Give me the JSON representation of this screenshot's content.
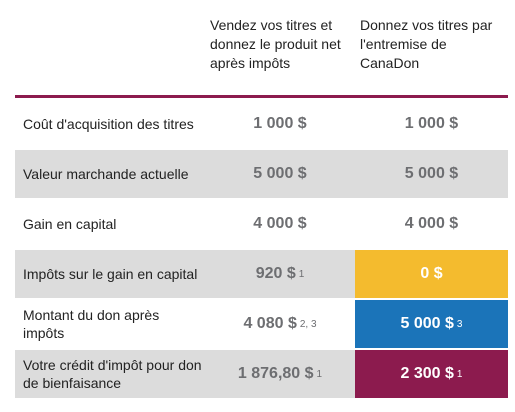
{
  "header": {
    "columns": [
      "Vendez vos titres et donnez le produit net après impôts",
      "Donnez vos titres par l'entremise de CanaDon"
    ]
  },
  "table": {
    "rows": [
      {
        "label": "Coût d'acquisition des titres",
        "cells": [
          {
            "value": "1 000 $"
          },
          {
            "value": "1 000 $"
          }
        ]
      },
      {
        "label": "Valeur marchande actuelle",
        "cells": [
          {
            "value": "5 000 $"
          },
          {
            "value": "5 000 $"
          }
        ]
      },
      {
        "label": "Gain en capital",
        "cells": [
          {
            "value": "4 000 $"
          },
          {
            "value": "4 000 $"
          }
        ]
      },
      {
        "label": "Impôts sur le gain en capital",
        "cells": [
          {
            "value": "920 $",
            "note": "1"
          },
          {
            "value": "0 $",
            "highlight": "#f4bb2e"
          }
        ]
      },
      {
        "label": "Montant du don après impôts",
        "cells": [
          {
            "value": "4 080 $",
            "note": "2, 3"
          },
          {
            "value": "5 000 $",
            "note": "3",
            "highlight": "#1b74b9"
          }
        ]
      },
      {
        "label": "Votre crédit d'impôt pour don de bienfaisance",
        "cells": [
          {
            "value": "1 876,80 $",
            "note": "1"
          },
          {
            "value": "2 300 $",
            "note": "1",
            "highlight": "#8c1b4e"
          }
        ]
      }
    ]
  }
}
